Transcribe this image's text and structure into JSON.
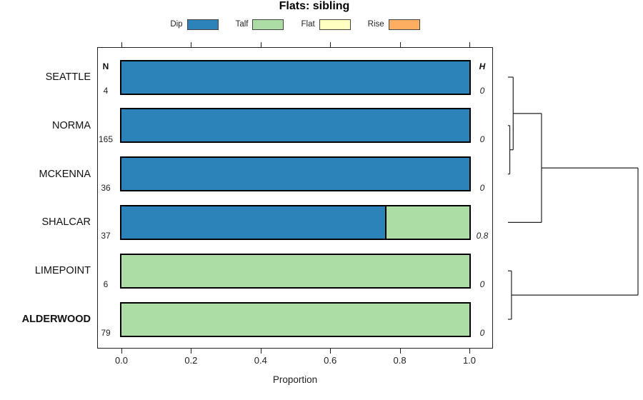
{
  "chart_data": {
    "type": "bar",
    "orientation": "horizontal_stacked",
    "title": "Flats: sibling",
    "xlabel": "Proportion",
    "xlim": [
      0,
      1
    ],
    "xticks": [
      "0.0",
      "0.2",
      "0.4",
      "0.6",
      "0.8",
      "1.0"
    ],
    "left_header": "N",
    "right_header": "H",
    "categories": [
      "SEATTLE",
      "NORMA",
      "MCKENNA",
      "SHALCAR",
      "LIMEPOINT",
      "ALDERWOOD"
    ],
    "bold_categories": [
      "ALDERWOOD"
    ],
    "n_values": [
      4,
      165,
      36,
      37,
      6,
      79
    ],
    "h_values": [
      "0",
      "0",
      "0",
      "0.8",
      "0",
      "0"
    ],
    "series": [
      {
        "name": "Dip",
        "color": "#2B83BA",
        "values": [
          1,
          1,
          1,
          0.757,
          0,
          0
        ]
      },
      {
        "name": "Talf",
        "color": "#ABDDA4",
        "values": [
          0,
          0,
          0,
          0.243,
          1,
          1
        ]
      },
      {
        "name": "Flat",
        "color": "#FFFFBF",
        "values": [
          0,
          0,
          0,
          0,
          0,
          0
        ]
      },
      {
        "name": "Rise",
        "color": "#FDAE61",
        "values": [
          0,
          0,
          0,
          0,
          0,
          0
        ]
      }
    ],
    "legend_position": "top",
    "grid": false,
    "dendrogram": {
      "leaf_order": [
        "SEATTLE",
        "NORMA",
        "MCKENNA",
        "SHALCAR",
        "LIMEPOINT",
        "ALDERWOOD"
      ],
      "merges": [
        {
          "children": [
            "NORMA",
            "MCKENNA"
          ],
          "height": 0.014
        },
        {
          "children": [
            "SEATTLE",
            "@0"
          ],
          "height": 0.04
        },
        {
          "children": [
            "@1",
            "SHALCAR"
          ],
          "height": 0.258
        },
        {
          "children": [
            "LIMEPOINT",
            "ALDERWOOD"
          ],
          "height": 0.027
        },
        {
          "children": [
            "@2",
            "@3"
          ],
          "height": 1.0
        }
      ]
    }
  }
}
